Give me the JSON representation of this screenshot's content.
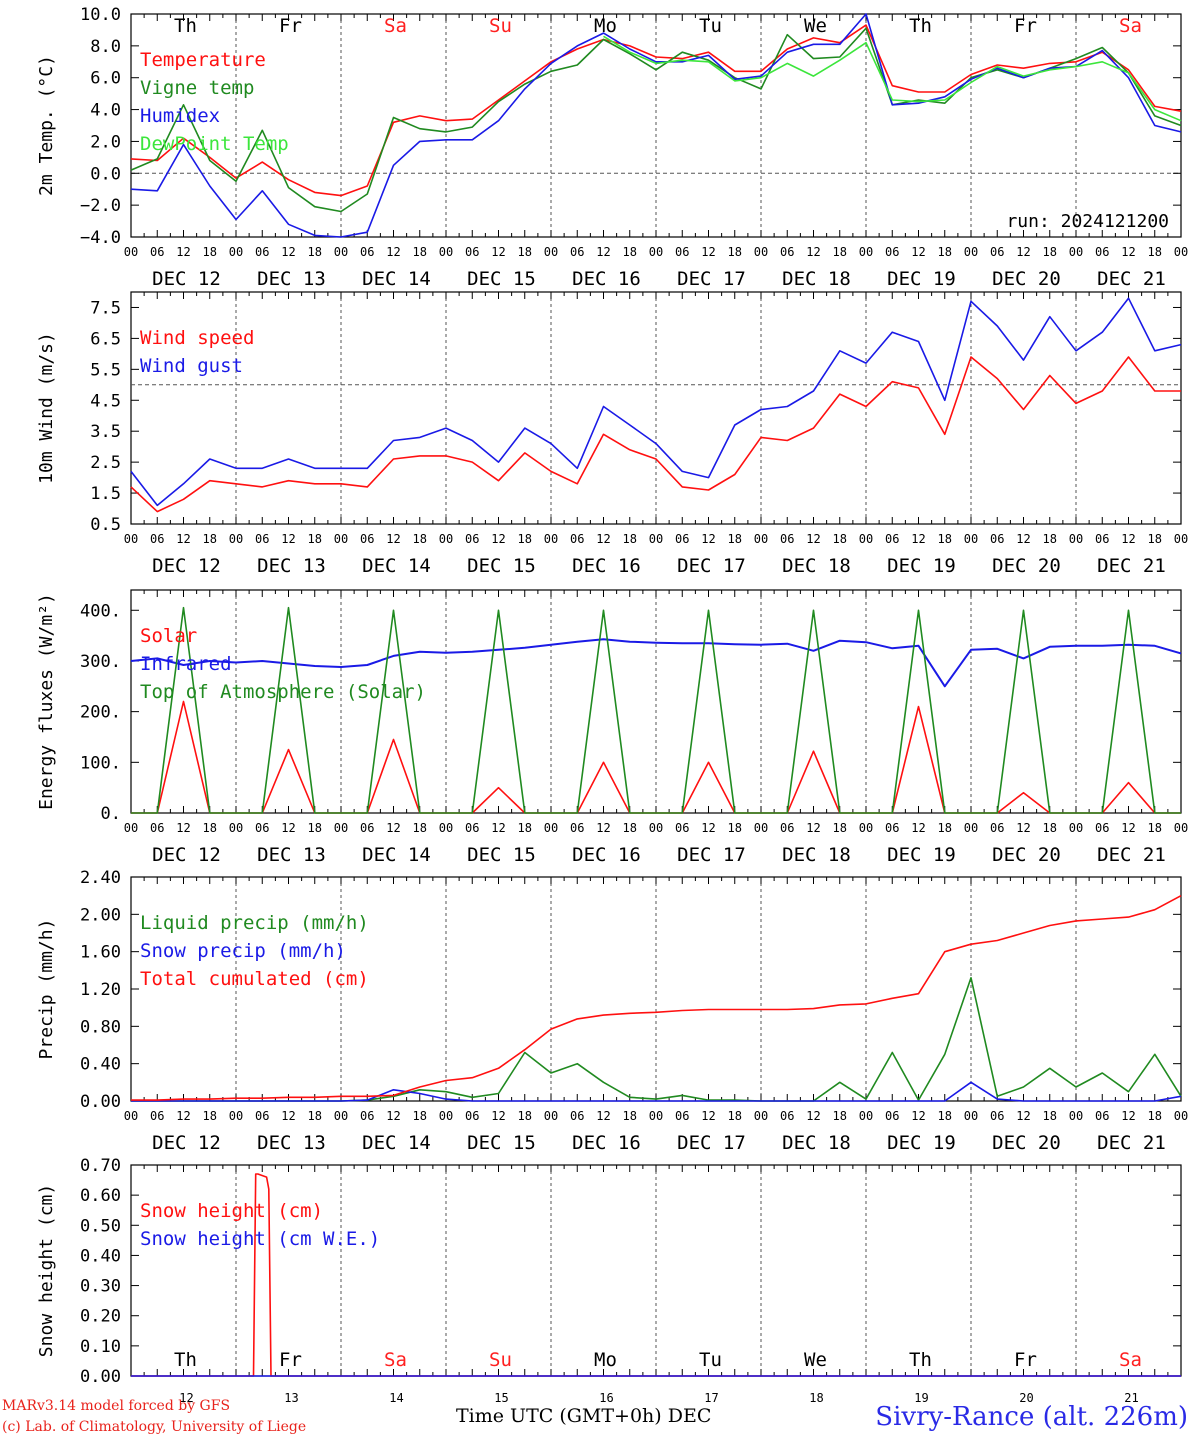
{
  "day_labels": [
    "DEC 12",
    "DEC 13",
    "DEC 14",
    "DEC 15",
    "DEC 16",
    "DEC 17",
    "DEC 18",
    "DEC 19",
    "DEC 20",
    "DEC 21"
  ],
  "weekday_labels": [
    "Th",
    "Fr",
    "Sa",
    "Su",
    "Mo",
    "Tu",
    "We",
    "Th",
    "Fr",
    "Sa"
  ],
  "weekday_colors": [
    "#000000",
    "#000000",
    "#ff2020",
    "#ff2020",
    "#000000",
    "#000000",
    "#000000",
    "#000000",
    "#000000",
    "#ff2020"
  ],
  "bottom_day_numbers": [
    "12",
    "13",
    "14",
    "15",
    "16",
    "17",
    "18",
    "19",
    "20",
    "21"
  ],
  "hour_ticks": [
    "00",
    "06",
    "12",
    "18"
  ],
  "last_hour_tick": "00",
  "footer": {
    "credit_line1": "MARv3.14 model forced by GFS",
    "credit_line2": "(c) Lab. of Climatology, University of Liege",
    "xlabel_time": "Time UTC (GMT+0h)",
    "xlabel_month": "DEC",
    "station": "Sivry-Rance (alt. 226m)"
  },
  "colors": {
    "red": "#ff1010",
    "green": "#208a20",
    "blue": "#1a1ae6",
    "lightgreen": "#3ce63c",
    "grid": "#555555"
  },
  "chart_data": [
    {
      "type": "line",
      "ylabel": "2m Temp. (°C)",
      "ylim": [
        -4,
        10
      ],
      "yticks": [
        "−4.0",
        "−2.0",
        "0.0",
        "2.0",
        "4.0",
        "6.0",
        "8.0",
        "10.0"
      ],
      "ytick_values": [
        -4,
        -2,
        0,
        2,
        4,
        6,
        8,
        10
      ],
      "ref_line": 0,
      "annotation": "run: 2024121200",
      "show_weekdays_top": true,
      "x_hours": [
        0,
        6,
        12,
        18,
        24,
        30,
        36,
        42,
        48,
        54,
        60,
        66,
        72,
        78,
        84,
        90,
        96,
        102,
        108,
        114,
        120,
        126,
        132,
        138,
        144,
        150,
        156,
        162,
        168,
        174,
        180,
        186,
        192,
        198,
        204,
        210,
        216,
        222,
        228,
        234,
        240
      ],
      "series": [
        {
          "name": "Temperature",
          "color": "red",
          "values": [
            0.9,
            0.8,
            2.2,
            1.0,
            -0.3,
            0.7,
            -0.4,
            -1.2,
            -1.4,
            -0.8,
            3.2,
            3.6,
            3.3,
            3.4,
            4.6,
            5.8,
            7.0,
            7.8,
            8.4,
            8.0,
            7.3,
            7.2,
            7.6,
            6.4,
            6.4,
            7.8,
            8.5,
            8.2,
            9.3,
            5.5,
            5.1,
            5.1,
            6.2,
            6.8,
            6.6,
            6.9,
            7.0,
            7.6,
            6.5,
            4.2,
            3.9
          ]
        },
        {
          "name": "Vigne temp",
          "color": "green",
          "values": [
            0.2,
            0.9,
            4.3,
            0.8,
            -0.5,
            2.7,
            -0.9,
            -2.1,
            -2.4,
            -1.3,
            3.5,
            2.8,
            2.6,
            2.9,
            4.5,
            5.6,
            6.4,
            6.8,
            8.4,
            7.5,
            6.5,
            7.6,
            7.1,
            6.0,
            5.3,
            8.7,
            7.2,
            7.3,
            9.1,
            4.3,
            4.6,
            4.4,
            6.0,
            6.5,
            6.0,
            6.6,
            7.2,
            7.9,
            6.3,
            3.6,
            3.0
          ]
        },
        {
          "name": "Humidex",
          "color": "blue",
          "values": [
            -1.0,
            -1.1,
            1.8,
            -0.8,
            -2.9,
            -1.1,
            -3.2,
            -3.9,
            -4.0,
            -3.7,
            0.5,
            2.0,
            2.1,
            2.1,
            3.3,
            5.3,
            6.9,
            8.0,
            8.8,
            7.8,
            7.0,
            7.0,
            7.4,
            5.9,
            6.1,
            7.6,
            8.1,
            8.1,
            10.0,
            4.3,
            4.4,
            4.8,
            5.9,
            6.6,
            6.0,
            6.6,
            6.7,
            7.7,
            6.0,
            3.0,
            2.6
          ]
        },
        {
          "name": "DewPoint Temp",
          "color": "lightgreen",
          "values": [
            null,
            null,
            null,
            null,
            null,
            null,
            null,
            null,
            null,
            null,
            null,
            null,
            null,
            null,
            null,
            null,
            null,
            null,
            8.6,
            7.6,
            6.9,
            7.1,
            7.0,
            5.8,
            6.0,
            6.9,
            6.1,
            7.1,
            8.2,
            4.6,
            4.5,
            4.6,
            5.7,
            6.7,
            6.1,
            6.5,
            6.7,
            7.0,
            6.3,
            4.0,
            3.3
          ]
        }
      ]
    },
    {
      "type": "line",
      "ylabel": "10m Wind (m/s)",
      "ylim": [
        0.5,
        8.0
      ],
      "yticks": [
        "0.5",
        "1.5",
        "2.5",
        "3.5",
        "4.5",
        "5.5",
        "6.5",
        "7.5"
      ],
      "ytick_values": [
        0.5,
        1.5,
        2.5,
        3.5,
        4.5,
        5.5,
        6.5,
        7.5
      ],
      "ref_line": 5.0,
      "x_hours": [
        0,
        6,
        12,
        18,
        24,
        30,
        36,
        42,
        48,
        54,
        60,
        66,
        72,
        78,
        84,
        90,
        96,
        102,
        108,
        114,
        120,
        126,
        132,
        138,
        144,
        150,
        156,
        162,
        168,
        174,
        180,
        186,
        192,
        198,
        204,
        210,
        216,
        222,
        228,
        234,
        240
      ],
      "series": [
        {
          "name": "Wind speed",
          "color": "red",
          "values": [
            1.7,
            0.9,
            1.3,
            1.9,
            1.8,
            1.7,
            1.9,
            1.8,
            1.8,
            1.7,
            2.6,
            2.7,
            2.7,
            2.5,
            1.9,
            2.8,
            2.2,
            1.8,
            3.4,
            2.9,
            2.6,
            1.7,
            1.6,
            2.1,
            3.3,
            3.2,
            3.6,
            4.7,
            4.3,
            5.1,
            4.9,
            3.4,
            5.9,
            5.2,
            4.2,
            5.3,
            4.4,
            4.8,
            5.9,
            4.8,
            4.8
          ]
        },
        {
          "name": "Wind gust",
          "color": "blue",
          "values": [
            2.2,
            1.1,
            1.8,
            2.6,
            2.3,
            2.3,
            2.6,
            2.3,
            2.3,
            2.3,
            3.2,
            3.3,
            3.6,
            3.2,
            2.5,
            3.6,
            3.1,
            2.3,
            4.3,
            3.7,
            3.1,
            2.2,
            2.0,
            3.7,
            4.2,
            4.3,
            4.8,
            6.1,
            5.7,
            6.7,
            6.4,
            4.5,
            7.7,
            6.9,
            5.8,
            7.2,
            6.1,
            6.7,
            7.8,
            6.1,
            6.3
          ]
        }
      ]
    },
    {
      "type": "line",
      "ylabel": "Energy fluxes (W/m²)",
      "ylim": [
        0,
        440
      ],
      "yticks": [
        "0.",
        "100.",
        "200.",
        "300.",
        "400."
      ],
      "ytick_values": [
        0,
        100,
        200,
        300,
        400
      ],
      "x_hours": [
        0,
        6,
        12,
        18,
        24,
        30,
        36,
        42,
        48,
        54,
        60,
        66,
        72,
        78,
        84,
        90,
        96,
        102,
        108,
        114,
        120,
        126,
        132,
        138,
        144,
        150,
        156,
        162,
        168,
        174,
        180,
        186,
        192,
        198,
        204,
        210,
        216,
        222,
        228,
        234,
        240
      ],
      "series": [
        {
          "name": "Solar",
          "color": "red",
          "values": [
            0,
            0,
            220,
            0,
            0,
            0,
            125,
            0,
            0,
            0,
            145,
            0,
            0,
            0,
            50,
            0,
            0,
            0,
            100,
            0,
            0,
            0,
            100,
            0,
            0,
            0,
            122,
            0,
            0,
            0,
            210,
            0,
            0,
            0,
            40,
            0,
            0,
            0,
            60,
            0,
            0
          ]
        },
        {
          "name": "Infrared",
          "color": "blue",
          "values": [
            300,
            305,
            292,
            300,
            297,
            300,
            295,
            290,
            288,
            292,
            310,
            318,
            316,
            318,
            322,
            326,
            332,
            338,
            343,
            338,
            336,
            335,
            335,
            333,
            332,
            334,
            320,
            340,
            337,
            325,
            330,
            250,
            322,
            324,
            305,
            328,
            330,
            330,
            332,
            330,
            315
          ]
        },
        {
          "name": "Top of Atmosphere (Solar)",
          "color": "green",
          "values": [
            0,
            0,
            405,
            0,
            0,
            0,
            405,
            0,
            0,
            0,
            400,
            0,
            0,
            0,
            400,
            0,
            0,
            0,
            400,
            0,
            0,
            0,
            400,
            0,
            0,
            0,
            400,
            0,
            0,
            0,
            400,
            0,
            0,
            0,
            400,
            0,
            0,
            0,
            400,
            0,
            0
          ]
        }
      ]
    },
    {
      "type": "line",
      "ylabel": "Precip (mm/h)",
      "ylim": [
        0,
        2.4
      ],
      "yticks": [
        "0.00",
        "0.40",
        "0.80",
        "1.20",
        "1.60",
        "2.00",
        "2.40"
      ],
      "ytick_values": [
        0,
        0.4,
        0.8,
        1.2,
        1.6,
        2.0,
        2.4
      ],
      "x_hours": [
        0,
        6,
        12,
        18,
        24,
        30,
        36,
        42,
        48,
        54,
        60,
        66,
        72,
        78,
        84,
        90,
        96,
        102,
        108,
        114,
        120,
        126,
        132,
        138,
        144,
        150,
        156,
        162,
        168,
        174,
        180,
        186,
        192,
        198,
        204,
        210,
        216,
        222,
        228,
        234,
        240
      ],
      "series": [
        {
          "name": "Liquid precip (mm/h)",
          "color": "green",
          "values": [
            0,
            0,
            0,
            0,
            0,
            0,
            0,
            0,
            0,
            0.01,
            0.05,
            0.12,
            0.1,
            0.04,
            0.08,
            0.52,
            0.3,
            0.4,
            0.2,
            0.04,
            0.02,
            0.06,
            0.01,
            0.01,
            0,
            0,
            0,
            0.2,
            0.02,
            0.52,
            0.01,
            0.5,
            1.32,
            0.05,
            0.15,
            0.35,
            0.15,
            0.3,
            0.1,
            0.5,
            0.05
          ]
        },
        {
          "name": "Snow precip (mm/h)",
          "color": "blue",
          "values": [
            0,
            0,
            0,
            0,
            0,
            0,
            0,
            0,
            0,
            0.01,
            0.12,
            0.08,
            0.02,
            0,
            0,
            0,
            0,
            0,
            0,
            0,
            0,
            0,
            0,
            0,
            0,
            0,
            0,
            0,
            0,
            0,
            0,
            0,
            0.2,
            0.02,
            0,
            0,
            0,
            0,
            0,
            0,
            0.05
          ]
        },
        {
          "name": "Total cumulated (cm)",
          "color": "red",
          "values": [
            0.01,
            0.01,
            0.02,
            0.02,
            0.03,
            0.03,
            0.04,
            0.04,
            0.05,
            0.05,
            0.06,
            0.15,
            0.22,
            0.25,
            0.35,
            0.55,
            0.77,
            0.88,
            0.92,
            0.94,
            0.95,
            0.97,
            0.98,
            0.98,
            0.98,
            0.98,
            0.99,
            1.03,
            1.04,
            1.1,
            1.15,
            1.6,
            1.68,
            1.72,
            1.8,
            1.88,
            1.93,
            1.95,
            1.97,
            2.05,
            2.2
          ]
        }
      ]
    },
    {
      "type": "line",
      "ylabel": "Snow height (cm)",
      "ylim": [
        0,
        0.7
      ],
      "yticks": [
        "0.00",
        "0.10",
        "0.20",
        "0.30",
        "0.40",
        "0.50",
        "0.60",
        "0.70"
      ],
      "ytick_values": [
        0,
        0.1,
        0.2,
        0.3,
        0.4,
        0.5,
        0.6,
        0.7
      ],
      "show_weekdays_bottom": true,
      "x_hours": [
        0,
        28,
        28.5,
        29,
        31,
        31.5,
        32,
        240
      ],
      "series": [
        {
          "name": "Snow height (cm)",
          "color": "red",
          "values": [
            0,
            0,
            0.67,
            0.67,
            0.66,
            0.62,
            0,
            0
          ]
        },
        {
          "name": "Snow height (cm W.E.)",
          "color": "blue",
          "values": [
            0,
            0,
            0,
            0,
            0,
            0,
            0,
            0
          ]
        }
      ]
    }
  ]
}
